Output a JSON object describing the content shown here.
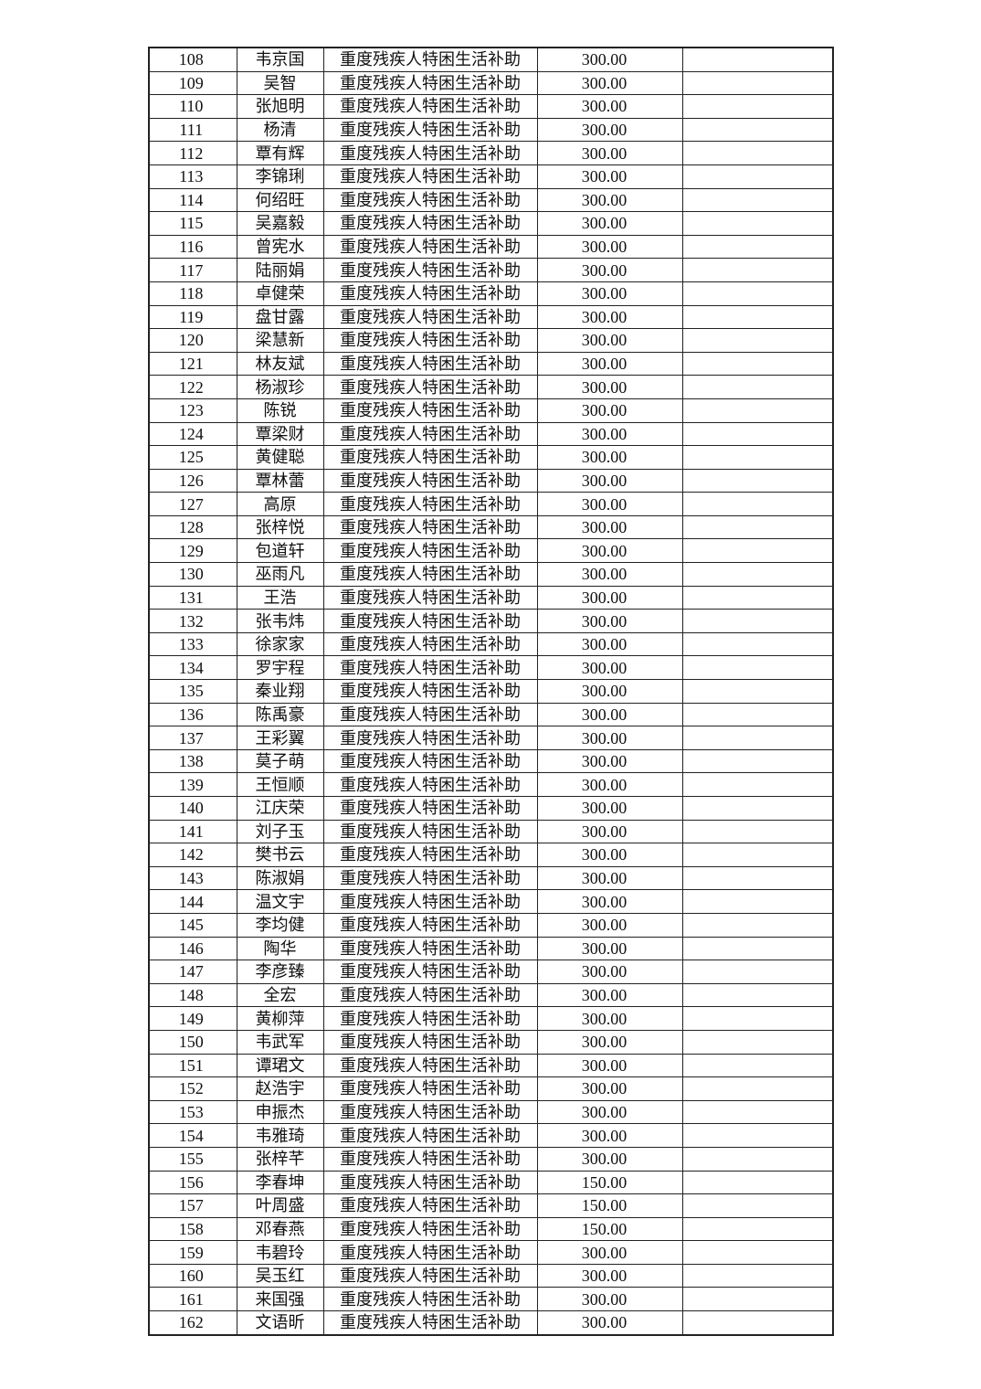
{
  "table": {
    "rows": [
      [
        "108",
        "韦京国",
        "重度残疾人特困生活补助",
        "300.00"
      ],
      [
        "109",
        "吴智",
        "重度残疾人特困生活补助",
        "300.00"
      ],
      [
        "110",
        "张旭明",
        "重度残疾人特困生活补助",
        "300.00"
      ],
      [
        "111",
        "杨清",
        "重度残疾人特困生活补助",
        "300.00"
      ],
      [
        "112",
        "覃有辉",
        "重度残疾人特困生活补助",
        "300.00"
      ],
      [
        "113",
        "李锦琍",
        "重度残疾人特困生活补助",
        "300.00"
      ],
      [
        "114",
        "何绍旺",
        "重度残疾人特困生活补助",
        "300.00"
      ],
      [
        "115",
        "吴嘉毅",
        "重度残疾人特困生活补助",
        "300.00"
      ],
      [
        "116",
        "曾宪水",
        "重度残疾人特困生活补助",
        "300.00"
      ],
      [
        "117",
        "陆丽娟",
        "重度残疾人特困生活补助",
        "300.00"
      ],
      [
        "118",
        "卓健荣",
        "重度残疾人特困生活补助",
        "300.00"
      ],
      [
        "119",
        "盘甘露",
        "重度残疾人特困生活补助",
        "300.00"
      ],
      [
        "120",
        "梁慧新",
        "重度残疾人特困生活补助",
        "300.00"
      ],
      [
        "121",
        "林友斌",
        "重度残疾人特困生活补助",
        "300.00"
      ],
      [
        "122",
        "杨淑珍",
        "重度残疾人特困生活补助",
        "300.00"
      ],
      [
        "123",
        "陈锐",
        "重度残疾人特困生活补助",
        "300.00"
      ],
      [
        "124",
        "覃梁财",
        "重度残疾人特困生活补助",
        "300.00"
      ],
      [
        "125",
        "黄健聪",
        "重度残疾人特困生活补助",
        "300.00"
      ],
      [
        "126",
        "覃林蕾",
        "重度残疾人特困生活补助",
        "300.00"
      ],
      [
        "127",
        "高原",
        "重度残疾人特困生活补助",
        "300.00"
      ],
      [
        "128",
        "张梓悦",
        "重度残疾人特困生活补助",
        "300.00"
      ],
      [
        "129",
        "包道轩",
        "重度残疾人特困生活补助",
        "300.00"
      ],
      [
        "130",
        "巫雨凡",
        "重度残疾人特困生活补助",
        "300.00"
      ],
      [
        "131",
        "王浩",
        "重度残疾人特困生活补助",
        "300.00"
      ],
      [
        "132",
        "张韦炜",
        "重度残疾人特困生活补助",
        "300.00"
      ],
      [
        "133",
        "徐家家",
        "重度残疾人特困生活补助",
        "300.00"
      ],
      [
        "134",
        "罗宇程",
        "重度残疾人特困生活补助",
        "300.00"
      ],
      [
        "135",
        "秦业翔",
        "重度残疾人特困生活补助",
        "300.00"
      ],
      [
        "136",
        "陈禹豪",
        "重度残疾人特困生活补助",
        "300.00"
      ],
      [
        "137",
        "王彩翼",
        "重度残疾人特困生活补助",
        "300.00"
      ],
      [
        "138",
        "莫子萌",
        "重度残疾人特困生活补助",
        "300.00"
      ],
      [
        "139",
        "王恒顺",
        "重度残疾人特困生活补助",
        "300.00"
      ],
      [
        "140",
        "江庆荣",
        "重度残疾人特困生活补助",
        "300.00"
      ],
      [
        "141",
        "刘子玉",
        "重度残疾人特困生活补助",
        "300.00"
      ],
      [
        "142",
        "樊书云",
        "重度残疾人特困生活补助",
        "300.00"
      ],
      [
        "143",
        "陈淑娟",
        "重度残疾人特困生活补助",
        "300.00"
      ],
      [
        "144",
        "温文宇",
        "重度残疾人特困生活补助",
        "300.00"
      ],
      [
        "145",
        "李均健",
        "重度残疾人特困生活补助",
        "300.00"
      ],
      [
        "146",
        "陶华",
        "重度残疾人特困生活补助",
        "300.00"
      ],
      [
        "147",
        "李彦臻",
        "重度残疾人特困生活补助",
        "300.00"
      ],
      [
        "148",
        "全宏",
        "重度残疾人特困生活补助",
        "300.00"
      ],
      [
        "149",
        "黄柳萍",
        "重度残疾人特困生活补助",
        "300.00"
      ],
      [
        "150",
        "韦武军",
        "重度残疾人特困生活补助",
        "300.00"
      ],
      [
        "151",
        "谭珺文",
        "重度残疾人特困生活补助",
        "300.00"
      ],
      [
        "152",
        "赵浩宇",
        "重度残疾人特困生活补助",
        "300.00"
      ],
      [
        "153",
        "申振杰",
        "重度残疾人特困生活补助",
        "300.00"
      ],
      [
        "154",
        "韦雅琦",
        "重度残疾人特困生活补助",
        "300.00"
      ],
      [
        "155",
        "张梓芊",
        "重度残疾人特困生活补助",
        "300.00"
      ],
      [
        "156",
        "李春坤",
        "重度残疾人特困生活补助",
        "150.00"
      ],
      [
        "157",
        "叶周盛",
        "重度残疾人特困生活补助",
        "150.00"
      ],
      [
        "158",
        "邓春燕",
        "重度残疾人特困生活补助",
        "150.00"
      ],
      [
        "159",
        "韦碧玲",
        "重度残疾人特困生活补助",
        "300.00"
      ],
      [
        "160",
        "吴玉红",
        "重度残疾人特困生活补助",
        "300.00"
      ],
      [
        "161",
        "来国强",
        "重度残疾人特困生活补助",
        "300.00"
      ],
      [
        "162",
        "文语昕",
        "重度残疾人特困生活补助",
        "300.00"
      ]
    ]
  }
}
